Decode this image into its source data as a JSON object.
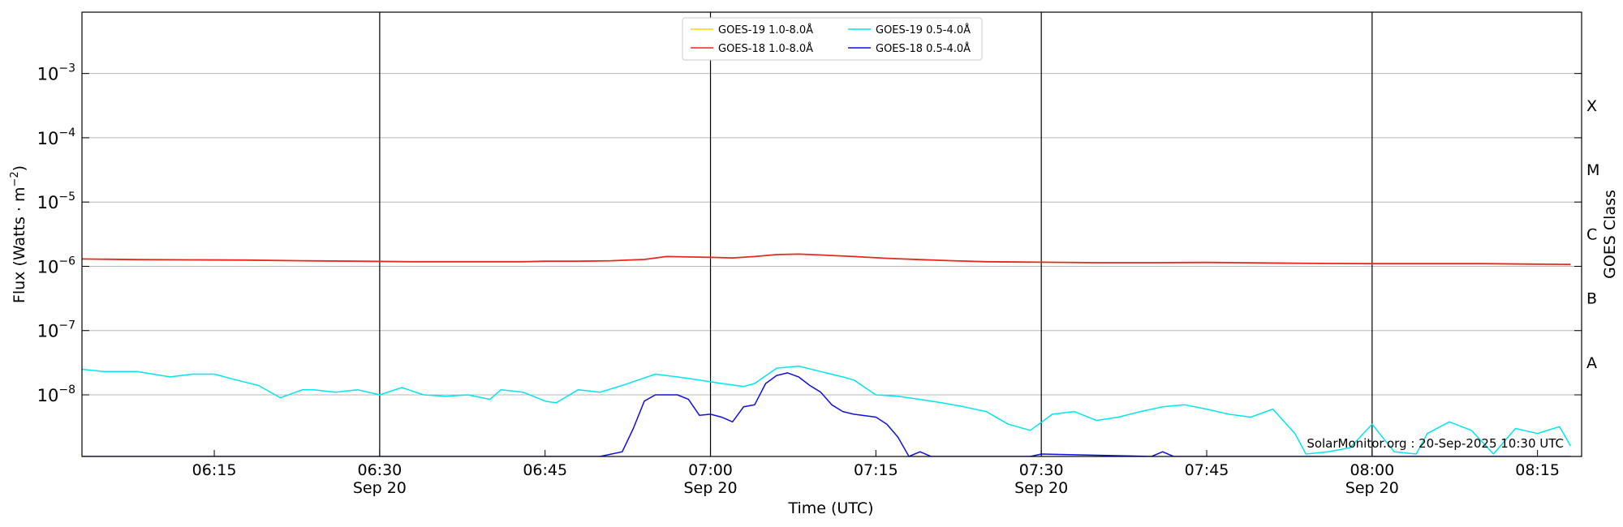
{
  "chart_data": {
    "type": "line",
    "ylabel": "Flux (Watts · m",
    "ylabel_sup": "−2",
    "ylabel_end": ")",
    "xlabel": "Time (UTC)",
    "right_label": "GOES Class",
    "y_scale": "log",
    "ylim": [
      1.1e-09,
      0.009
    ],
    "xlim": [
      "06:03",
      "08:19"
    ],
    "grid": "horizontal at decades",
    "legend_placement": "top-center",
    "y_ticks": [
      {
        "value": 0.001,
        "base": "10",
        "exp": "−3"
      },
      {
        "value": 0.0001,
        "base": "10",
        "exp": "−4"
      },
      {
        "value": 1e-05,
        "base": "10",
        "exp": "−5"
      },
      {
        "value": 1e-06,
        "base": "10",
        "exp": "−6"
      },
      {
        "value": 1e-07,
        "base": "10",
        "exp": "−7"
      },
      {
        "value": 1e-08,
        "base": "10",
        "exp": "−8"
      }
    ],
    "goes_classes": [
      {
        "label": "X",
        "value": 0.00032
      },
      {
        "label": "M",
        "value": 3.2e-05
      },
      {
        "label": "C",
        "value": 3.2e-06
      },
      {
        "label": "B",
        "value": 3.2e-07
      },
      {
        "label": "A",
        "value": 3.2e-08
      }
    ],
    "x_ticks": [
      {
        "time": "06:15",
        "label": "06:15",
        "date": ""
      },
      {
        "time": "06:30",
        "label": "06:30",
        "date": "Sep 20"
      },
      {
        "time": "06:45",
        "label": "06:45",
        "date": ""
      },
      {
        "time": "07:00",
        "label": "07:00",
        "date": "Sep 20"
      },
      {
        "time": "07:15",
        "label": "07:15",
        "date": ""
      },
      {
        "time": "07:30",
        "label": "07:30",
        "date": "Sep 20"
      },
      {
        "time": "07:45",
        "label": "07:45",
        "date": ""
      },
      {
        "time": "08:00",
        "label": "08:00",
        "date": "Sep 20"
      },
      {
        "time": "08:15",
        "label": "08:15",
        "date": ""
      }
    ],
    "vertical_lines": [
      "06:30",
      "07:00",
      "07:30",
      "08:00"
    ],
    "annotation": "SolarMonitor.org : 20-Sep-2025 10:30 UTC",
    "series": [
      {
        "name": "GOES-19 1.0-8.0Å",
        "color": "#FFD700",
        "x": [],
        "y": []
      },
      {
        "name": "GOES-18 1.0-8.0Å",
        "color": "#E8281E",
        "x": [
          "06:03",
          "06:08",
          "06:13",
          "06:18",
          "06:23",
          "06:28",
          "06:33",
          "06:38",
          "06:43",
          "06:45",
          "06:48",
          "06:51",
          "06:54",
          "06:56",
          "06:58",
          "07:00",
          "07:02",
          "07:04",
          "07:06",
          "07:08",
          "07:10",
          "07:13",
          "07:16",
          "07:19",
          "07:22",
          "07:25",
          "07:30",
          "07:35",
          "07:40",
          "07:45",
          "07:50",
          "07:55",
          "08:00",
          "08:05",
          "08:10",
          "08:15",
          "08:18"
        ],
        "y": [
          1.3e-06,
          1.27e-06,
          1.26e-06,
          1.25e-06,
          1.22e-06,
          1.2e-06,
          1.18e-06,
          1.18e-06,
          1.18e-06,
          1.2e-06,
          1.2e-06,
          1.22e-06,
          1.28e-06,
          1.42e-06,
          1.4e-06,
          1.38e-06,
          1.35e-06,
          1.42e-06,
          1.52e-06,
          1.55e-06,
          1.5e-06,
          1.42e-06,
          1.33e-06,
          1.27e-06,
          1.22e-06,
          1.18e-06,
          1.16e-06,
          1.14e-06,
          1.14e-06,
          1.15e-06,
          1.13e-06,
          1.11e-06,
          1.1e-06,
          1.1e-06,
          1.1e-06,
          1.08e-06,
          1.07e-06
        ]
      },
      {
        "name": "GOES-19 0.5-4.0Å",
        "color": "#00E5EE",
        "x": [
          "06:03",
          "06:05",
          "06:08",
          "06:11",
          "06:13",
          "06:15",
          "06:17",
          "06:19",
          "06:21",
          "06:23",
          "06:24",
          "06:26",
          "06:28",
          "06:30",
          "06:32",
          "06:34",
          "06:36",
          "06:38",
          "06:40",
          "06:41",
          "06:43",
          "06:45",
          "06:46",
          "06:48",
          "06:50",
          "06:52",
          "06:53",
          "06:55",
          "06:57",
          "06:59",
          "07:01",
          "07:03",
          "07:04",
          "07:06",
          "07:08",
          "07:10",
          "07:12",
          "07:13",
          "07:15",
          "07:17",
          "07:19",
          "07:21",
          "07:23",
          "07:25",
          "07:27",
          "07:29",
          "07:31",
          "07:33",
          "07:35",
          "07:37",
          "07:39",
          "07:41",
          "07:43",
          "07:45",
          "07:47",
          "07:49",
          "07:51",
          "07:53",
          "07:54",
          "07:56",
          "07:58",
          "08:00",
          "08:02",
          "08:04",
          "08:05",
          "08:07",
          "08:09",
          "08:11",
          "08:13",
          "08:15",
          "08:17",
          "08:18"
        ],
        "y": [
          2.5e-08,
          2.3e-08,
          2.3e-08,
          1.9e-08,
          2.1e-08,
          2.1e-08,
          1.7e-08,
          1.4e-08,
          9e-09,
          1.2e-08,
          1.2e-08,
          1.1e-08,
          1.2e-08,
          1e-08,
          1.3e-08,
          1e-08,
          9.5e-09,
          1e-08,
          8.5e-09,
          1.2e-08,
          1.1e-08,
          8e-09,
          7.5e-09,
          1.2e-08,
          1.1e-08,
          1.4e-08,
          1.6e-08,
          2.1e-08,
          1.9e-08,
          1.7e-08,
          1.5e-08,
          1.35e-08,
          1.5e-08,
          2.6e-08,
          2.8e-08,
          2.3e-08,
          1.9e-08,
          1.7e-08,
          1e-08,
          9.5e-09,
          8.5e-09,
          7.5e-09,
          6.5e-09,
          5.5e-09,
          3.5e-09,
          2.8e-09,
          5e-09,
          5.5e-09,
          4e-09,
          4.5e-09,
          5.5e-09,
          6.5e-09,
          7e-09,
          6e-09,
          5e-09,
          4.5e-09,
          6e-09,
          2.5e-09,
          1.2e-09,
          1.3e-09,
          1.5e-09,
          3.5e-09,
          1.3e-09,
          1.2e-09,
          2.5e-09,
          3.8e-09,
          2.8e-09,
          1.2e-09,
          3e-09,
          2.5e-09,
          3.2e-09,
          1.6e-09
        ]
      },
      {
        "name": "GOES-18 0.5-4.0Å",
        "color": "#1010E0",
        "x": [
          "06:03",
          "06:50",
          "06:52",
          "06:53",
          "06:54",
          "06:55",
          "06:57",
          "06:58",
          "06:59",
          "07:00",
          "07:01",
          "07:02",
          "07:03",
          "07:04",
          "07:05",
          "07:06",
          "07:07",
          "07:08",
          "07:09",
          "07:10",
          "07:11",
          "07:12",
          "07:13",
          "07:15",
          "07:16",
          "07:17",
          "07:18",
          "07:19",
          "07:20",
          "07:25",
          "07:29",
          "07:30",
          "07:40",
          "07:41",
          "07:42",
          "07:43",
          "08:18"
        ],
        "y": [
          1.1e-09,
          1.1e-09,
          1.3e-09,
          3e-09,
          8e-09,
          1e-08,
          1e-08,
          8.5e-09,
          4.8e-09,
          5e-09,
          4.5e-09,
          3.8e-09,
          6.5e-09,
          7e-09,
          1.5e-08,
          2e-08,
          2.2e-08,
          1.9e-08,
          1.4e-08,
          1.1e-08,
          7e-09,
          5.5e-09,
          5e-09,
          4.5e-09,
          3.5e-09,
          2.2e-09,
          1.1e-09,
          1.3e-09,
          1.1e-09,
          1.1e-09,
          1.1e-09,
          1.2e-09,
          1.1e-09,
          1.3e-09,
          1.1e-09,
          1.1e-09,
          1.1e-09
        ]
      }
    ]
  }
}
